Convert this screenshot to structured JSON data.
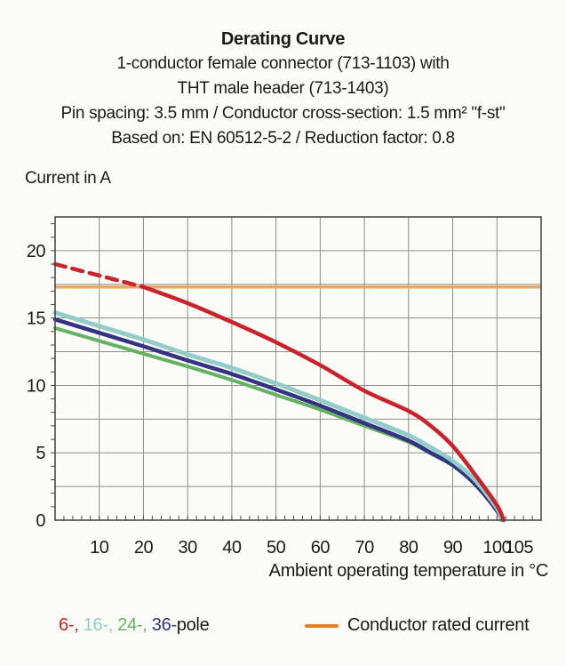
{
  "header": {
    "title": "Derating Curve",
    "lines": [
      "1-conductor female connector (713-1103) with",
      "THT male header (713-1403)",
      "Pin spacing: 3.5 mm / Conductor cross-section: 1.5 mm² \"f-st\"",
      "Based on: EN 60512-5-2 / Reduction factor: 0.8"
    ]
  },
  "colors": {
    "red": "#cb2229",
    "orange_line": "#eba763",
    "orange_legend": "#e87f28",
    "cyan": "#92cdc8",
    "navy": "#343383",
    "green": "#62b262",
    "grid": "#8e8e8e",
    "axis": "#4a4a4a",
    "text": "#1a1a1a"
  },
  "chart_data": {
    "type": "line",
    "title": "Derating Curve",
    "xlabel": "Ambient operating temperature in °C",
    "ylabel": "Current in A",
    "xlim": [
      0,
      110
    ],
    "ylim": [
      0,
      22.5
    ],
    "grid": "on",
    "x_gridline_step": 10,
    "y_gridline_step": 2.5,
    "x_minor_tick_step": 2,
    "y_minor_tick_step": 1,
    "x_tick_labels": [
      10,
      20,
      30,
      40,
      50,
      60,
      70,
      80,
      90,
      100,
      105
    ],
    "y_tick_labels": [
      0,
      5,
      10,
      15,
      20
    ],
    "reference_line": {
      "label": "Conductor rated current",
      "y": 17.3,
      "color_key": "orange_line"
    },
    "series": [
      {
        "name": "24-pole",
        "color_key": "green",
        "width": 4,
        "points": [
          [
            0,
            14.25
          ],
          [
            10,
            13.3
          ],
          [
            20,
            12.35
          ],
          [
            30,
            11.4
          ],
          [
            40,
            10.4
          ],
          [
            50,
            9.3
          ],
          [
            60,
            8.2
          ],
          [
            70,
            7.0
          ],
          [
            80,
            5.8
          ],
          [
            85,
            4.95
          ],
          [
            90,
            4.05
          ],
          [
            95,
            2.65
          ],
          [
            100,
            0.7
          ],
          [
            101,
            0
          ]
        ]
      },
      {
        "name": "36-pole",
        "color_key": "navy",
        "width": 4.5,
        "points": [
          [
            0,
            14.9
          ],
          [
            10,
            13.9
          ],
          [
            20,
            12.9
          ],
          [
            30,
            11.85
          ],
          [
            40,
            10.85
          ],
          [
            50,
            9.7
          ],
          [
            60,
            8.5
          ],
          [
            70,
            7.2
          ],
          [
            80,
            5.9
          ],
          [
            85,
            5.0
          ],
          [
            90,
            4.1
          ],
          [
            95,
            2.7
          ],
          [
            100,
            0.7
          ],
          [
            101,
            0
          ]
        ]
      },
      {
        "name": "16-pole",
        "color_key": "cyan",
        "width": 5,
        "points": [
          [
            0,
            15.4
          ],
          [
            10,
            14.4
          ],
          [
            20,
            13.4
          ],
          [
            30,
            12.3
          ],
          [
            40,
            11.3
          ],
          [
            50,
            10.15
          ],
          [
            60,
            8.9
          ],
          [
            70,
            7.6
          ],
          [
            80,
            6.3
          ],
          [
            85,
            5.4
          ],
          [
            90,
            4.4
          ],
          [
            95,
            3.0
          ],
          [
            100,
            0.9
          ],
          [
            101,
            0
          ]
        ]
      },
      {
        "name": "6-pole",
        "color_key": "red",
        "width": 4.5,
        "dashed_until_x": 20,
        "points": [
          [
            0,
            19.0
          ],
          [
            10,
            18.15
          ],
          [
            20,
            17.3
          ],
          [
            30,
            16.1
          ],
          [
            40,
            14.7
          ],
          [
            50,
            13.2
          ],
          [
            60,
            11.5
          ],
          [
            70,
            9.6
          ],
          [
            80,
            8.1
          ],
          [
            85,
            7.0
          ],
          [
            90,
            5.5
          ],
          [
            95,
            3.4
          ],
          [
            100,
            1.1
          ],
          [
            101.5,
            0
          ]
        ]
      }
    ]
  },
  "legend": {
    "pole_segments": [
      {
        "text": "6-, ",
        "color_key": "red"
      },
      {
        "text": "16-, ",
        "color_key": "cyan"
      },
      {
        "text": "24-, ",
        "color_key": "green"
      },
      {
        "text": "36-",
        "color_key": "navy"
      },
      {
        "text": "pole",
        "color_key": "text"
      }
    ],
    "rated_label": "Conductor rated current"
  }
}
